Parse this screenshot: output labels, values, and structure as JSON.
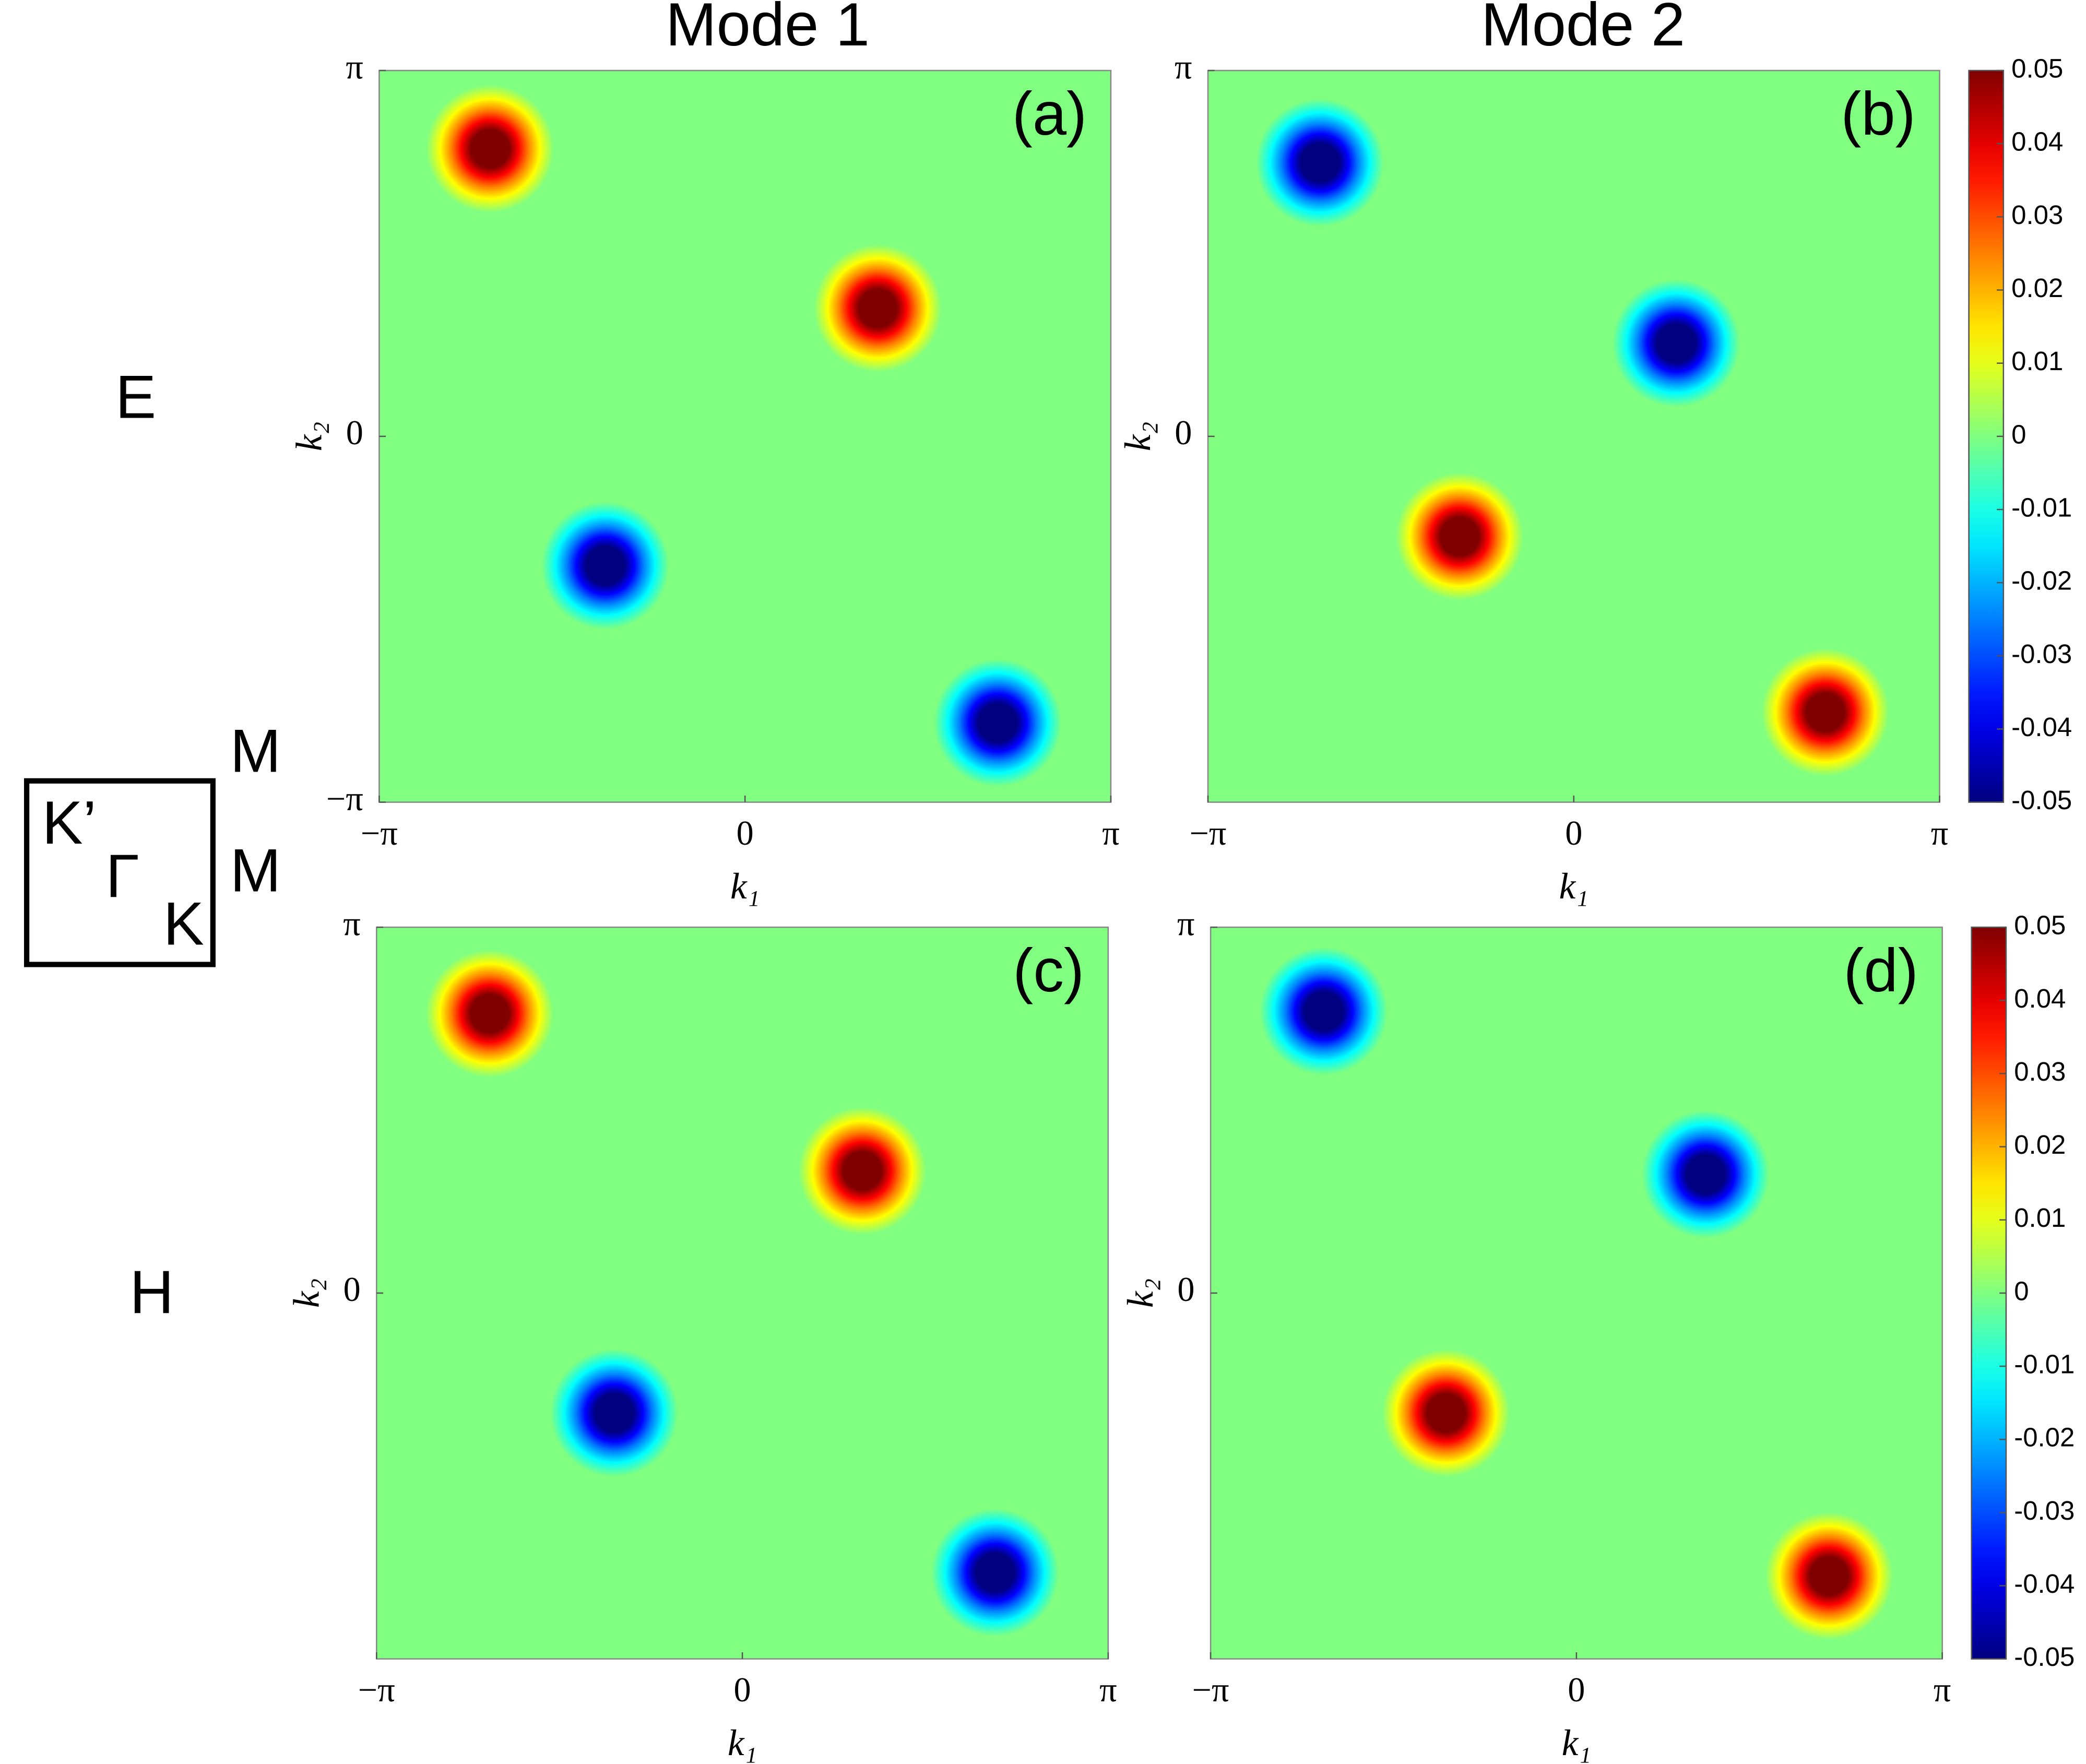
{
  "column_titles": [
    "Mode 1",
    "Mode 2"
  ],
  "row_labels": [
    "E",
    "H"
  ],
  "inset_labels": {
    "k_prime": "K’",
    "gamma": "Γ",
    "k": "K",
    "m_top": "M",
    "m_bottom": "M"
  },
  "chart_data": [
    {
      "type": "heatmap",
      "label": "(a)",
      "xlabel": "k₁",
      "ylabel": "k₂",
      "colormap": "jet",
      "clim": [
        -0.05,
        0.05
      ],
      "colorbar": false,
      "xlim": [
        -3.14159,
        3.14159
      ],
      "ylim": [
        -3.14159,
        3.14159
      ],
      "xticks": [
        {
          "value": -3.14159,
          "label": "−π"
        },
        0,
        {
          "value": 3.14159,
          "label": "π"
        }
      ],
      "yticks": [
        {
          "value": -3.14159,
          "label": "−π"
        },
        0,
        {
          "value": 3.14159,
          "label": "π"
        }
      ],
      "blobs": [
        {
          "x": -2.19,
          "y": 2.47,
          "value": 0.05
        },
        {
          "x": 1.14,
          "y": 1.1,
          "value": 0.05
        },
        {
          "x": -1.2,
          "y": -1.11,
          "value": -0.05
        },
        {
          "x": 2.17,
          "y": -2.46,
          "value": -0.05
        }
      ]
    },
    {
      "type": "heatmap",
      "label": "(b)",
      "xlabel": "k₁",
      "ylabel": "k₂",
      "colormap": "jet",
      "clim": [
        -0.05,
        0.05
      ],
      "colorbar": true,
      "xlim": [
        -3.14159,
        3.14159
      ],
      "ylim": [
        -3.14159,
        3.14159
      ],
      "xticks": [
        {
          "value": -3.14159,
          "label": "−π"
        },
        0,
        {
          "value": 3.14159,
          "label": "π"
        }
      ],
      "yticks": [
        {
          "value": 0,
          "label": "0"
        },
        {
          "value": 3.14159,
          "label": "π"
        }
      ],
      "cticks": [
        0.05,
        0.04,
        0.03,
        0.02,
        0.01,
        0,
        -0.01,
        -0.02,
        -0.03,
        -0.04,
        -0.05
      ],
      "blobs": [
        {
          "x": -2.18,
          "y": 2.35,
          "value": -0.05
        },
        {
          "x": 0.88,
          "y": 0.8,
          "value": -0.05
        },
        {
          "x": -0.98,
          "y": -0.86,
          "value": 0.05
        },
        {
          "x": 2.16,
          "y": -2.37,
          "value": 0.05
        }
      ]
    },
    {
      "type": "heatmap",
      "label": "(c)",
      "xlabel": "k₁",
      "ylabel": "k₂",
      "colormap": "jet",
      "clim": [
        -0.05,
        0.05
      ],
      "colorbar": false,
      "xlim": [
        -3.14159,
        3.14159
      ],
      "ylim": [
        -3.14159,
        3.14159
      ],
      "xticks": [
        {
          "value": -3.14159,
          "label": "−π"
        },
        0,
        {
          "value": 3.14159,
          "label": "π"
        }
      ],
      "yticks": [
        {
          "value": 0,
          "label": "0"
        },
        {
          "value": 3.14159,
          "label": "π"
        }
      ],
      "blobs": [
        {
          "x": -2.17,
          "y": 2.4,
          "value": 0.05
        },
        {
          "x": 1.03,
          "y": 1.05,
          "value": 0.05
        },
        {
          "x": -1.1,
          "y": -1.03,
          "value": -0.05
        },
        {
          "x": 2.17,
          "y": -2.4,
          "value": -0.05
        }
      ]
    },
    {
      "type": "heatmap",
      "label": "(d)",
      "xlabel": "k₁",
      "ylabel": "k₂",
      "colormap": "jet",
      "clim": [
        -0.05,
        0.05
      ],
      "colorbar": true,
      "xlim": [
        -3.14159,
        3.14159
      ],
      "ylim": [
        -3.14159,
        3.14159
      ],
      "xticks": [
        {
          "value": -3.14159,
          "label": "−π"
        },
        0,
        {
          "value": 3.14159,
          "label": "π"
        }
      ],
      "yticks": [
        {
          "value": 0,
          "label": "0"
        },
        {
          "value": 3.14159,
          "label": "π"
        }
      ],
      "cticks": [
        0.05,
        0.04,
        0.03,
        0.02,
        0.01,
        0,
        -0.01,
        -0.02,
        -0.03,
        -0.04,
        -0.05
      ],
      "blobs": [
        {
          "x": -2.17,
          "y": 2.42,
          "value": -0.05
        },
        {
          "x": 1.11,
          "y": 1.02,
          "value": -0.05
        },
        {
          "x": -1.12,
          "y": -1.03,
          "value": 0.05
        },
        {
          "x": 2.17,
          "y": -2.43,
          "value": 0.05
        }
      ]
    }
  ]
}
